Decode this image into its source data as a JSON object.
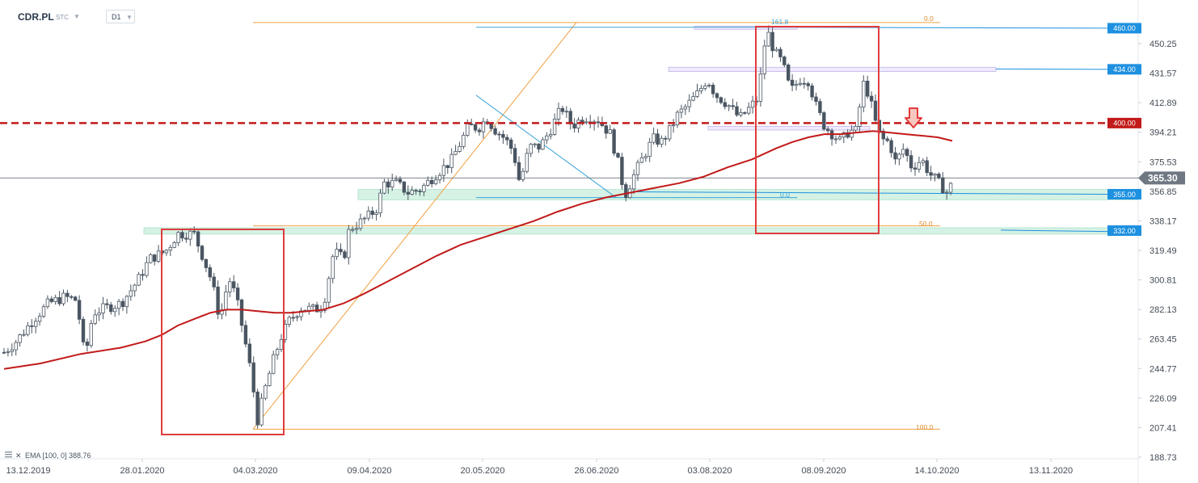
{
  "header": {
    "symbol": "CDR.PL",
    "exchange": "STC",
    "timeframe": "D1"
  },
  "chart_data": {
    "type": "candlestick",
    "y_ticks": [
      "450.25",
      "431.57",
      "412.89",
      "394.21",
      "375.53",
      "356.85",
      "338.17",
      "319.49",
      "300.81",
      "282.13",
      "263.45",
      "244.77",
      "226.09",
      "207.41",
      "188.73"
    ],
    "x_ticks": [
      "13.12.2019",
      "28.01.2020",
      "04.03.2020",
      "09.04.2020",
      "20.05.2020",
      "26.06.2020",
      "03.08.2020",
      "08.09.2020",
      "14.10.2020",
      "13.11.2020"
    ],
    "last_price": "365.30",
    "last_price_value": 365.3,
    "ema": {
      "label": "EMA [100, 0] 388.76",
      "color": "#c21a1a"
    },
    "levels": [
      {
        "label": "460.00",
        "value": 460.0,
        "color": "#1e90e0"
      },
      {
        "label": "434.00",
        "value": 434.0,
        "color": "#1e90e0"
      },
      {
        "label": "400.00",
        "value": 400.0,
        "color": "#c21a1a"
      },
      {
        "label": "355.00",
        "value": 355.0,
        "color": "#1e90e0"
      },
      {
        "label": "332.00",
        "value": 332.0,
        "color": "#1e90e0"
      }
    ],
    "fibonacci_labels": [
      {
        "text": "161.8",
        "color": "#3aa3d8"
      },
      {
        "text": "0.0",
        "color": "#e08a2a"
      },
      {
        "text": "0.0",
        "color": "#3aa3d8"
      },
      {
        "text": "50.0",
        "color": "#e08a2a"
      },
      {
        "text": "100.0",
        "color": "#e08a2a"
      }
    ],
    "colors": {
      "up": "#ffffff",
      "down": "#4a5562",
      "ema": "#c21a1a",
      "support_zone": "#c8eedd",
      "resistance_zone": "#ede8fb"
    }
  }
}
